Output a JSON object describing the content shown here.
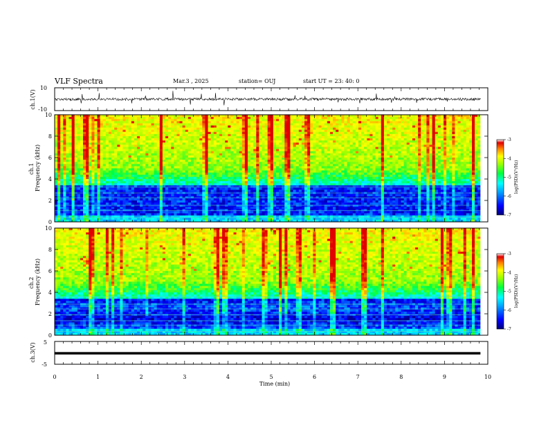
{
  "header": {
    "title": "VLF Spectra",
    "date": "Mar.3 , 2025",
    "station": "station= OUJ",
    "start": "start UT = 23: 40: 0"
  },
  "chart_data": [
    {
      "id": "ch1-waveform",
      "type": "line",
      "ylabel": "ch.1(V)",
      "ylim": [
        -10,
        10
      ],
      "yticks": [
        "10",
        "-10"
      ],
      "xlim": [
        0,
        10
      ],
      "baseline": 0,
      "data_extent_min": 9.83
    },
    {
      "id": "ch1-spectrogram",
      "type": "heatmap",
      "ylabel": "ch.1 Frequency (kHz)",
      "ylim": [
        0,
        10
      ],
      "yticks": [
        "0",
        "2",
        "4",
        "6",
        "8",
        "10"
      ],
      "xlim": [
        0,
        10
      ],
      "colorbar": {
        "label": "log(PSD)(V²/Hz)",
        "range": [
          -7,
          -3
        ],
        "ticks": [
          "-3",
          "-4",
          "-5",
          "-6",
          "-7"
        ]
      }
    },
    {
      "id": "ch2-spectrogram",
      "type": "heatmap",
      "ylabel": "ch.2 Frequency (kHz)",
      "ylim": [
        0,
        10
      ],
      "yticks": [
        "0",
        "2",
        "4",
        "6",
        "8",
        "10"
      ],
      "xlim": [
        0,
        10
      ],
      "colorbar": {
        "label": "log(PSD)(V²/Hz)",
        "range": [
          -7,
          -3
        ],
        "ticks": [
          "-3",
          "-4",
          "-5",
          "-6",
          "-7"
        ]
      }
    },
    {
      "id": "ch3-waveform",
      "type": "line",
      "ylabel": "ch.3(V)",
      "ylim": [
        -5,
        5
      ],
      "yticks": [
        "5",
        "-5"
      ],
      "xlim": [
        0,
        10
      ],
      "baseline": -0.2,
      "data_extent_min": 9.83
    }
  ],
  "xaxis": {
    "label": "Time (min)",
    "ticks": [
      "0",
      "1",
      "2",
      "3",
      "4",
      "5",
      "6",
      "7",
      "8",
      "9",
      "10"
    ]
  },
  "colors": {
    "colormap": [
      "#00007a",
      "#0000ff",
      "#00a0ff",
      "#00ffff",
      "#00ff40",
      "#a0ff00",
      "#ffff00",
      "#ff8000",
      "#e00000",
      "#ffffff"
    ]
  }
}
